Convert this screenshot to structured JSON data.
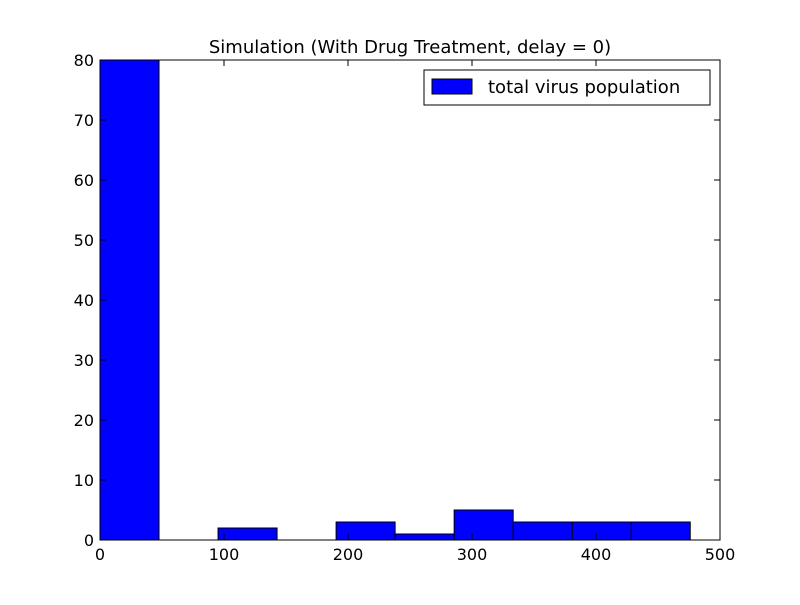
{
  "chart_data": {
    "type": "bar",
    "title": "Simulation (With Drug Treatment, delay = 0)",
    "xlabel": "",
    "ylabel": "",
    "xlim": [
      0,
      500
    ],
    "ylim": [
      0,
      80
    ],
    "xticks": [
      0,
      100,
      200,
      300,
      400,
      500
    ],
    "yticks": [
      0,
      10,
      20,
      30,
      40,
      50,
      60,
      70,
      80
    ],
    "grid": false,
    "legend_position": "top-right",
    "bar_color": "#0000ff",
    "series": [
      {
        "name": "total virus population",
        "bins": [
          {
            "x0": 0,
            "x1": 47.6,
            "value": 80
          },
          {
            "x0": 47.6,
            "x1": 95.2,
            "value": 0
          },
          {
            "x0": 95.2,
            "x1": 142.8,
            "value": 2
          },
          {
            "x0": 142.8,
            "x1": 190.4,
            "value": 0
          },
          {
            "x0": 190.4,
            "x1": 238.0,
            "value": 3
          },
          {
            "x0": 238.0,
            "x1": 285.6,
            "value": 1
          },
          {
            "x0": 285.6,
            "x1": 333.2,
            "value": 5
          },
          {
            "x0": 333.2,
            "x1": 380.8,
            "value": 3
          },
          {
            "x0": 380.8,
            "x1": 428.4,
            "value": 3
          },
          {
            "x0": 428.4,
            "x1": 476.0,
            "value": 3
          }
        ]
      }
    ]
  }
}
